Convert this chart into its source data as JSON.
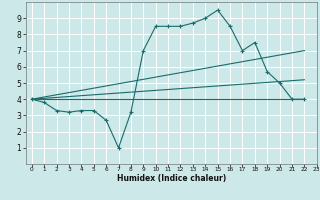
{
  "title": "",
  "xlabel": "Humidex (Indice chaleur)",
  "xlim": [
    -0.5,
    23
  ],
  "ylim": [
    0,
    10
  ],
  "xticks": [
    0,
    1,
    2,
    3,
    4,
    5,
    6,
    7,
    8,
    9,
    10,
    11,
    12,
    13,
    14,
    15,
    16,
    17,
    18,
    19,
    20,
    21,
    22,
    23
  ],
  "yticks": [
    1,
    2,
    3,
    4,
    5,
    6,
    7,
    8,
    9
  ],
  "bg_color": "#cce8e8",
  "line_color": "#1a6b6b",
  "grid_color": "#ffffff",
  "lines": [
    {
      "x": [
        0,
        1,
        2,
        3,
        4,
        5,
        6,
        7,
        8,
        9,
        10,
        11,
        12,
        13,
        14,
        15,
        16,
        17,
        18,
        19,
        20,
        21,
        22
      ],
      "y": [
        4,
        3.8,
        3.3,
        3.2,
        3.3,
        3.3,
        2.7,
        1.0,
        3.2,
        7.0,
        8.5,
        8.5,
        8.5,
        8.7,
        9.0,
        9.5,
        8.5,
        7.0,
        7.5,
        5.7,
        5.0,
        4.0,
        4.0
      ],
      "marker": "+"
    },
    {
      "x": [
        0,
        22
      ],
      "y": [
        4.0,
        7.0
      ],
      "marker": null
    },
    {
      "x": [
        0,
        22
      ],
      "y": [
        4.0,
        5.2
      ],
      "marker": null
    },
    {
      "x": [
        0,
        22
      ],
      "y": [
        4.0,
        4.0
      ],
      "marker": null
    }
  ]
}
